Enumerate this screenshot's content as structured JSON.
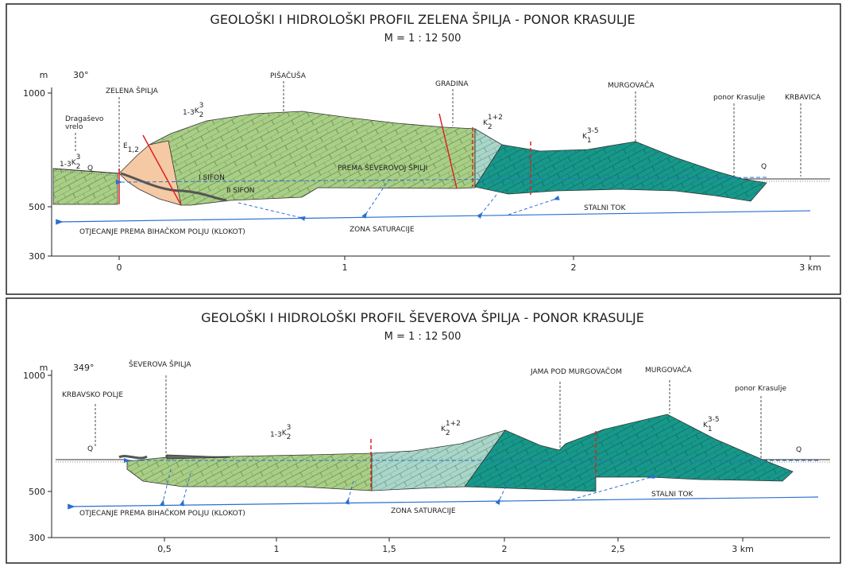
{
  "panels": [
    {
      "title": "GEOLOŠKI I HIDROLOŠKI PROFIL ZELENA ŠPILJA - PONOR KRASULJE",
      "scale": "M = 1 : 12 500",
      "unit": "m",
      "azimuth": "30°",
      "y_ticks": [
        "1000",
        "500",
        "300"
      ],
      "x_ticks": [
        "0",
        "1",
        "2",
        "3 km"
      ],
      "places": [
        "ZELENA ŠPILJA",
        "Dragaševo",
        "vrelo",
        "PIŠAČUŠA",
        "GRADINA",
        "MURGOVAČA",
        "ponor Krasulje",
        "KRBAVICA"
      ],
      "formations": [
        {
          "prefix": "1-3",
          "symbol": "K",
          "sup": "3",
          "sub": "2"
        },
        {
          "prefix": "1-3",
          "symbol": "K",
          "sup": "3",
          "sub": "2"
        },
        {
          "symbol": "E",
          "sub": "1,2"
        },
        {
          "symbol": "K",
          "sup": "1+2",
          "sub": "2"
        },
        {
          "symbol": "K",
          "sup": "3-5",
          "sub": "1"
        },
        {
          "symbol": "Q"
        },
        {
          "symbol": "Q"
        }
      ],
      "notes": [
        "PREMA ŠEVEROVOJ ŠPILJI",
        "I SIFON",
        "II SIFON",
        "STALNI TOK",
        "ZONA SATURACIJE",
        "OTJECANJE PREMA BIHAČKOM POLJU (KLOKOT)"
      ]
    },
    {
      "title": "GEOLOŠKI I HIDROLOŠKI PROFIL ŠEVEROVA ŠPILJA - PONOR KRASULJE",
      "scale": "M = 1 : 12 500",
      "unit": "m",
      "azimuth": "349°",
      "y_ticks": [
        "1000",
        "500",
        "300"
      ],
      "x_ticks": [
        "0,5",
        "1",
        "1,5",
        "2",
        "2,5",
        "3 km"
      ],
      "places": [
        "ŠEVEROVA ŠPILJA",
        "KRBAVSKO POLJE",
        "JAMA POD MURGOVAČOM",
        "MURGOVAČA",
        "ponor Krasulje"
      ],
      "formations": [
        {
          "symbol": "Q"
        },
        {
          "prefix": "1-3",
          "symbol": "K",
          "sup": "3",
          "sub": "2"
        },
        {
          "symbol": "K",
          "sup": "1+2",
          "sub": "2"
        },
        {
          "symbol": "K",
          "sup": "3-5",
          "sub": "1"
        },
        {
          "symbol": "Q"
        }
      ],
      "notes": [
        "STALNI TOK",
        "ZONA SATURACIJE",
        "OTJECANJE PREMA BIHAČKOM POLJU (KLOKOT)"
      ]
    }
  ]
}
